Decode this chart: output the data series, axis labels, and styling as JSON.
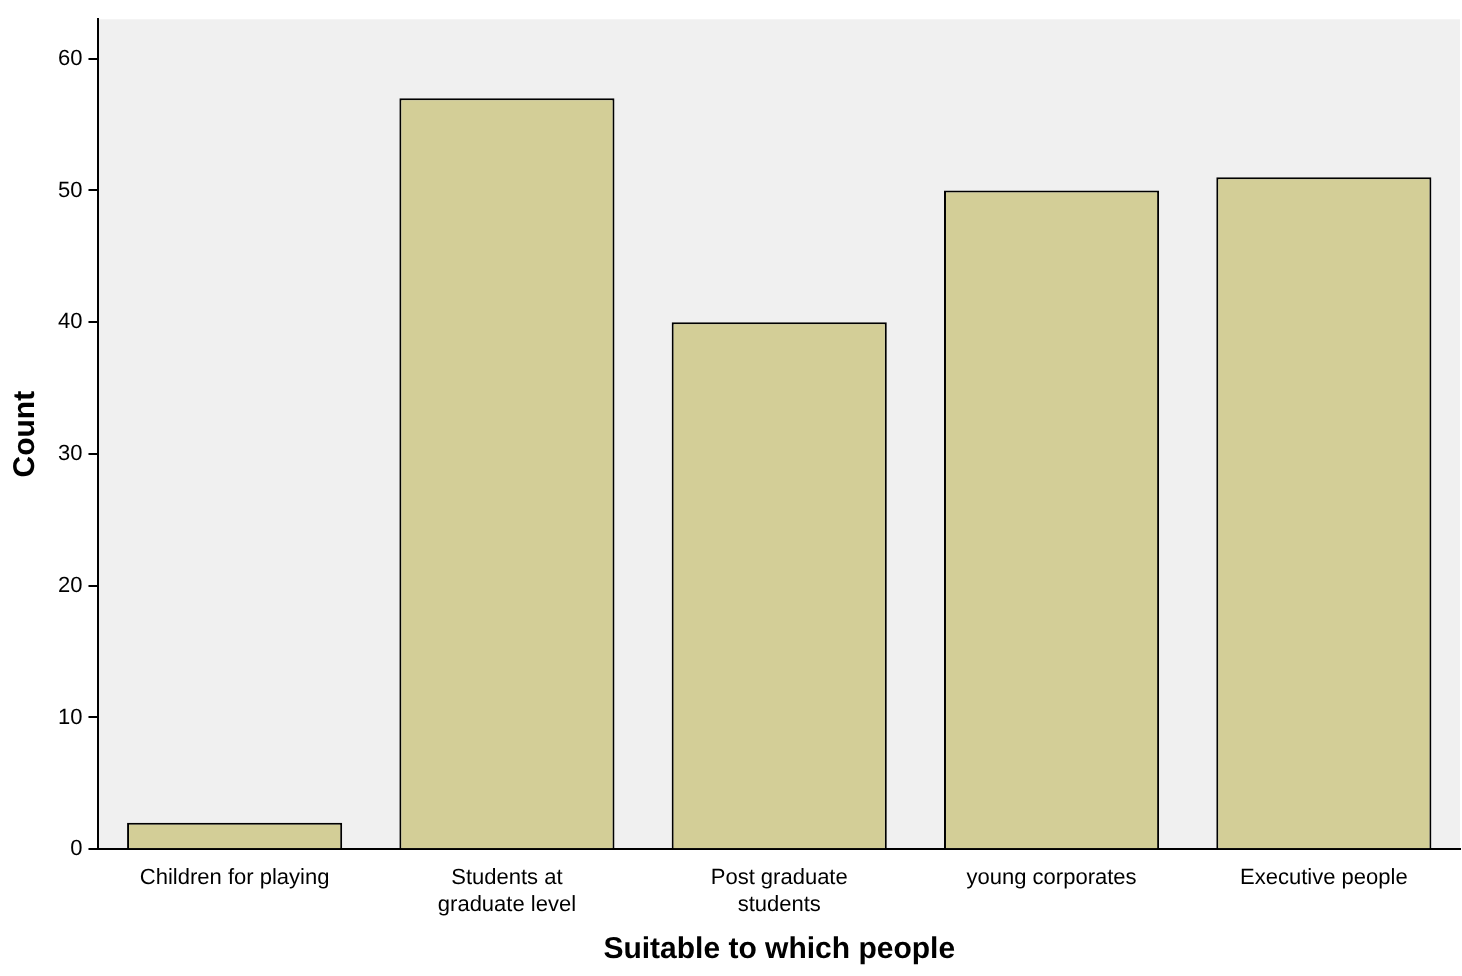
{
  "chart_data": {
    "type": "bar",
    "xlabel": "Suitable to which people",
    "ylabel": "Count",
    "categories": [
      "Children for playing",
      "Students at graduate level",
      "Post graduate students",
      "young corporates",
      "Executive people"
    ],
    "values": [
      2,
      57,
      40,
      50,
      51
    ],
    "color": "#d3ce97",
    "ylim": [
      0,
      63
    ],
    "yticks": [
      0,
      10,
      20,
      30,
      40,
      50,
      60
    ],
    "grid": false,
    "legend": false
  }
}
